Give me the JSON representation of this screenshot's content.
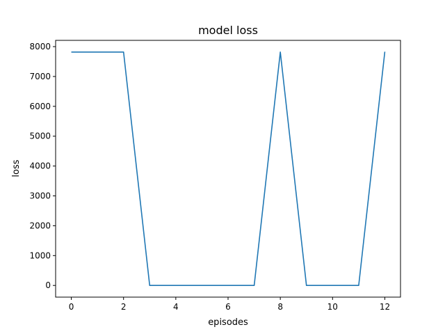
{
  "chart_data": {
    "type": "line",
    "title": "model loss",
    "xlabel": "episodes",
    "ylabel": "loss",
    "xlim": [
      -0.6,
      12.6
    ],
    "ylim": [
      -391,
      8210
    ],
    "xticks": [
      0,
      2,
      4,
      6,
      8,
      10,
      12
    ],
    "yticks": [
      0,
      1000,
      2000,
      3000,
      4000,
      5000,
      6000,
      7000,
      8000
    ],
    "grid": false,
    "line_color": "#1f77b4",
    "series": [
      {
        "x": [
          0,
          1,
          2,
          3,
          4,
          5,
          6,
          7,
          8,
          9,
          10,
          11,
          12
        ],
        "values": [
          7818,
          7818,
          7818,
          0,
          0,
          0,
          0,
          0,
          7818,
          0,
          0,
          0,
          7830
        ]
      }
    ]
  }
}
